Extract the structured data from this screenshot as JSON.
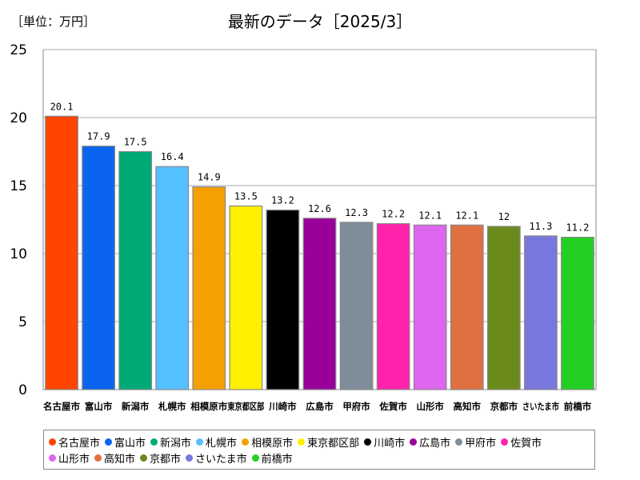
{
  "header": {
    "unit_label": "［単位：万円］",
    "title": "最新のデータ［2025/3］"
  },
  "chart_data": {
    "type": "bar",
    "categories": [
      "名古屋市",
      "富山市",
      "新潟市",
      "札幌市",
      "相模原市",
      "東京都区部",
      "川崎市",
      "広島市",
      "甲府市",
      "佐賀市",
      "山形市",
      "高知市",
      "京都市",
      "さいたま市",
      "前橋市"
    ],
    "x_tick_labels": [
      "名古屋市",
      "富山市",
      "新潟市",
      "札幌市",
      "相模原市",
      "東京都区部",
      "川崎市",
      "広島市",
      "甲府市",
      "佐賀市",
      "山形市",
      "高知市",
      "京都市",
      "さいたま市",
      "前橋市"
    ],
    "values": [
      20.1,
      17.9,
      17.5,
      16.4,
      14.9,
      13.5,
      13.2,
      12.6,
      12.3,
      12.2,
      12.1,
      12.1,
      12,
      11.3,
      11.2
    ],
    "value_labels": [
      "20.1",
      "17.9",
      "17.5",
      "16.4",
      "14.9",
      "13.5",
      "13.2",
      "12.6",
      "12.3",
      "12.2",
      "12.1",
      "12.1",
      "12",
      "11.3",
      "11.2"
    ],
    "colors": [
      "#ff4400",
      "#0a64f0",
      "#00aa77",
      "#55c0ff",
      "#f5a000",
      "#fff000",
      "#000000",
      "#990099",
      "#7f8c99",
      "#ff22aa",
      "#dd66ee",
      "#e07040",
      "#6b8a1c",
      "#7777dd",
      "#22d022"
    ],
    "ylim": [
      0,
      25
    ],
    "y_ticks": [
      0,
      5,
      10,
      15,
      20,
      25
    ],
    "y_tick_labels": [
      "0",
      "5",
      "10",
      "15",
      "20",
      "25"
    ],
    "grid": true,
    "legend_position": "bottom",
    "xlabel": "",
    "ylabel": ""
  },
  "legend": {
    "items": [
      {
        "label": "名古屋市",
        "color": "#ff4400"
      },
      {
        "label": "富山市",
        "color": "#0a64f0"
      },
      {
        "label": "新潟市",
        "color": "#00aa77"
      },
      {
        "label": "札幌市",
        "color": "#55c0ff"
      },
      {
        "label": "相模原市",
        "color": "#f5a000"
      },
      {
        "label": "東京都区部",
        "color": "#fff000"
      },
      {
        "label": "川崎市",
        "color": "#000000"
      },
      {
        "label": "広島市",
        "color": "#990099"
      },
      {
        "label": "甲府市",
        "color": "#7f8c99"
      },
      {
        "label": "佐賀市",
        "color": "#ff22aa"
      },
      {
        "label": "山形市",
        "color": "#dd66ee"
      },
      {
        "label": "高知市",
        "color": "#e07040"
      },
      {
        "label": "京都市",
        "color": "#6b8a1c"
      },
      {
        "label": "さいたま市",
        "color": "#7777dd"
      },
      {
        "label": "前橋市",
        "color": "#22d022"
      }
    ]
  }
}
